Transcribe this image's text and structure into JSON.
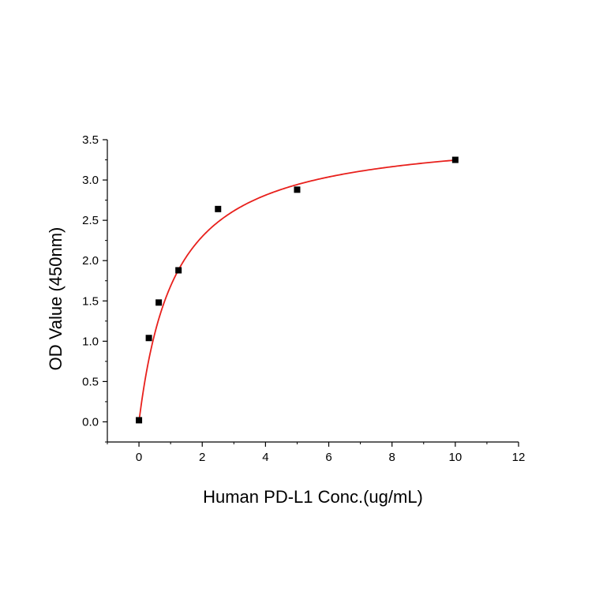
{
  "chart_data": {
    "type": "scatter",
    "xlabel": "Human PD-L1 Conc.(ug/mL)",
    "ylabel": "OD Value (450nm)",
    "xlim": [
      -1,
      12
    ],
    "ylim": [
      -0.25,
      3.5
    ],
    "x_ticks": [
      0,
      2,
      4,
      6,
      8,
      10,
      12
    ],
    "x_tick_labels": [
      "0",
      "2",
      "4",
      "6",
      "8",
      "10",
      "12"
    ],
    "y_ticks": [
      0.0,
      0.5,
      1.0,
      1.5,
      2.0,
      2.5,
      3.0,
      3.5
    ],
    "y_tick_labels": [
      "0.0",
      "0.5",
      "1.0",
      "1.5",
      "2.0",
      "2.5",
      "3.0",
      "3.5"
    ],
    "grid": false,
    "series": [
      {
        "marker": "square",
        "color": "#000000",
        "x": [
          0,
          0.3125,
          0.625,
          1.25,
          2.5,
          5,
          10
        ],
        "y": [
          0.02,
          1.04,
          1.48,
          1.88,
          2.64,
          2.88,
          3.25
        ]
      }
    ],
    "fit_curve": {
      "model": "hyperbolic saturation",
      "color": "#e8201c",
      "bmax": 3.62,
      "kd": 1.15,
      "x_range": [
        0,
        10
      ]
    }
  }
}
